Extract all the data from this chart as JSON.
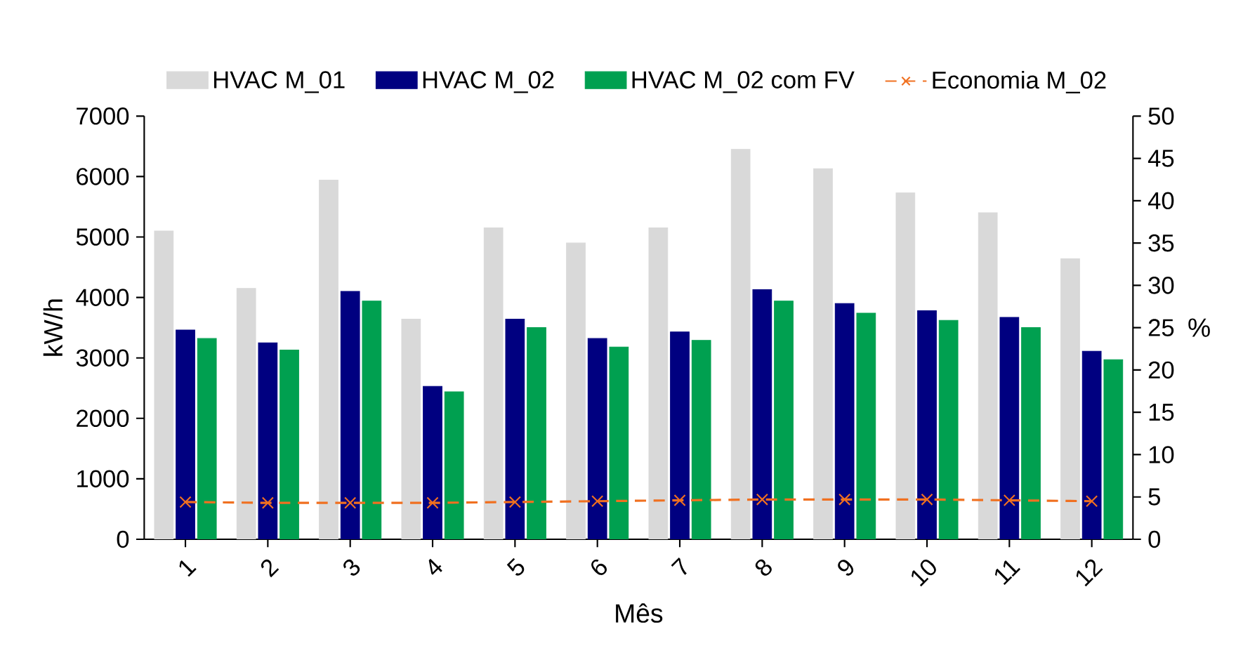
{
  "chart_data": {
    "type": "bar",
    "xlabel": "Mês",
    "ylabel": "kW/h",
    "y2label": "%",
    "categories": [
      "1",
      "2",
      "3",
      "4",
      "5",
      "6",
      "7",
      "8",
      "9",
      "10",
      "11",
      "12"
    ],
    "series": [
      {
        "name": "HVAC M_01",
        "color": "#d9d9d9",
        "values": [
          5100,
          4150,
          5940,
          3640,
          5150,
          4900,
          5150,
          6450,
          6130,
          5730,
          5400,
          4640
        ]
      },
      {
        "name": "HVAC M_02",
        "color": "#000080",
        "values": [
          3460,
          3250,
          4100,
          2530,
          3640,
          3320,
          3430,
          4130,
          3900,
          3780,
          3670,
          3110
        ]
      },
      {
        "name": "HVAC M_02 com FV",
        "color": "#00a050",
        "values": [
          3320,
          3130,
          3940,
          2440,
          3500,
          3180,
          3290,
          3940,
          3740,
          3620,
          3500,
          2970
        ]
      },
      {
        "name": "Economia M_02",
        "type": "line",
        "axis": "y2",
        "color": "#f07020",
        "marker": "cross",
        "line_style": "dashed",
        "values": [
          4.4,
          4.3,
          4.3,
          4.3,
          4.4,
          4.5,
          4.6,
          4.7,
          4.7,
          4.7,
          4.6,
          4.5
        ]
      }
    ],
    "ylim": [
      0,
      7000
    ],
    "yticks": [
      0,
      1000,
      2000,
      3000,
      4000,
      5000,
      6000,
      7000
    ],
    "y2lim": [
      0,
      50
    ],
    "y2ticks": [
      0,
      5,
      10,
      15,
      20,
      25,
      30,
      35,
      40,
      45,
      50
    ],
    "grid": false,
    "legend": "top"
  }
}
